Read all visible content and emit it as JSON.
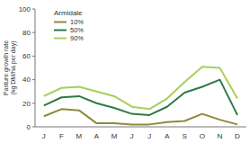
{
  "chart_data": {
    "type": "line",
    "y_label": "Pasture growth rate (kg DM/ha per day)",
    "legend_title": "Armidale",
    "legend": "top-left",
    "categories": [
      "J",
      "F",
      "M",
      "A",
      "M",
      "J",
      "J",
      "A",
      "S",
      "O",
      "N",
      "D"
    ],
    "series": [
      {
        "name": "10%",
        "color": "#8c8a3c",
        "values": [
          9,
          15,
          14,
          3,
          3,
          2,
          2,
          4,
          5,
          11,
          6,
          2
        ]
      },
      {
        "name": "50%",
        "color": "#2f7a46",
        "values": [
          18,
          25,
          26,
          20,
          16,
          11,
          10,
          17,
          29,
          34,
          40,
          10
        ]
      },
      {
        "name": "90%",
        "color": "#a6d05c",
        "values": [
          26,
          33,
          34,
          30,
          26,
          17,
          15,
          24,
          38,
          51,
          50,
          24
        ]
      }
    ],
    "ylim": [
      0,
      100
    ],
    "yticks": [
      0,
      20,
      40,
      60,
      80,
      100
    ],
    "grid": false
  }
}
